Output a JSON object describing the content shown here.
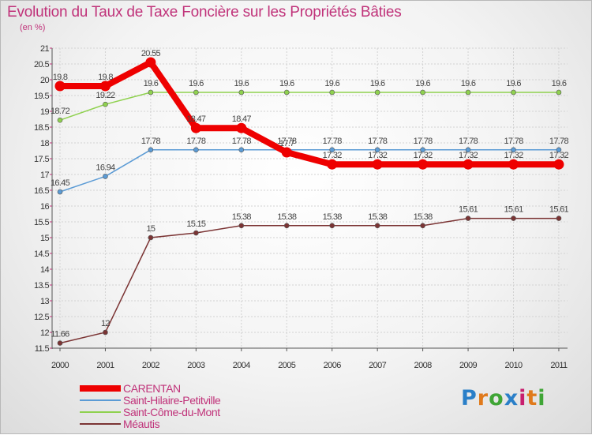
{
  "header": {
    "title": "Evolution du Taux de Taxe Foncière sur les Propriétés Bâties",
    "subtitle": "(en %)"
  },
  "logo": {
    "text": "Proxiti",
    "letter_colors": [
      "#2a7fc8",
      "#e07a1c",
      "#3fa535",
      "#2a7fc8",
      "#c81e6e",
      "#e07a1c",
      "#3fa535"
    ]
  },
  "chart_data": {
    "type": "line",
    "title": "Evolution du Taux de Taxe Foncière sur les Propriétés Bâties",
    "ylabel": "(en %)",
    "x": [
      "2000",
      "2001",
      "2002",
      "2003",
      "2004",
      "2005",
      "2006",
      "2007",
      "2008",
      "2009",
      "2010",
      "2011"
    ],
    "ylim": [
      11.5,
      21
    ],
    "yticks": [
      "11.5",
      "12",
      "12.5",
      "13",
      "13.5",
      "14",
      "14.5",
      "15",
      "15.5",
      "16",
      "16.5",
      "17",
      "17.5",
      "18",
      "18.5",
      "19",
      "19.5",
      "20",
      "20.5",
      "21"
    ],
    "grid": true,
    "legend_position": "bottom-left",
    "series": [
      {
        "name": "CARENTAN",
        "color": "#ee0000",
        "values": [
          19.8,
          19.8,
          20.55,
          18.47,
          18.47,
          17.7,
          17.32,
          17.32,
          17.32,
          17.32,
          17.32,
          17.32
        ],
        "labels": [
          "19.8",
          "19.8",
          "20.55",
          "18.47",
          "18.47",
          "17.7",
          "17.32",
          "17.32",
          "17.32",
          "17.32",
          "17.32",
          "17.32"
        ]
      },
      {
        "name": "Saint-Hilaire-Petitville",
        "color": "#5b9bd5",
        "values": [
          16.45,
          16.94,
          17.78,
          17.78,
          17.78,
          17.78,
          17.78,
          17.78,
          17.78,
          17.78,
          17.78,
          17.78
        ],
        "labels": [
          "16.45",
          "16.94",
          "17.78",
          "17.78",
          "17.78",
          "17.78",
          "17.78",
          "17.78",
          "17.78",
          "17.78",
          "17.78",
          "17.78"
        ]
      },
      {
        "name": "Saint-Côme-du-Mont",
        "color": "#8fd14f",
        "values": [
          18.72,
          19.22,
          19.6,
          19.6,
          19.6,
          19.6,
          19.6,
          19.6,
          19.6,
          19.6,
          19.6,
          19.6
        ],
        "labels": [
          "18.72",
          "19.22",
          "19.6",
          "19.6",
          "19.6",
          "19.6",
          "19.6",
          "19.6",
          "19.6",
          "19.6",
          "19.6",
          "19.6"
        ]
      },
      {
        "name": "Méautis",
        "color": "#7b3434",
        "values": [
          11.66,
          12,
          15,
          15.15,
          15.38,
          15.38,
          15.38,
          15.38,
          15.38,
          15.61,
          15.61,
          15.61
        ],
        "labels": [
          "11.66",
          "12",
          "15",
          "15.15",
          "15.38",
          "15.38",
          "15.38",
          "15.38",
          "15.38",
          "15.61",
          "15.61",
          "15.61"
        ]
      }
    ]
  }
}
